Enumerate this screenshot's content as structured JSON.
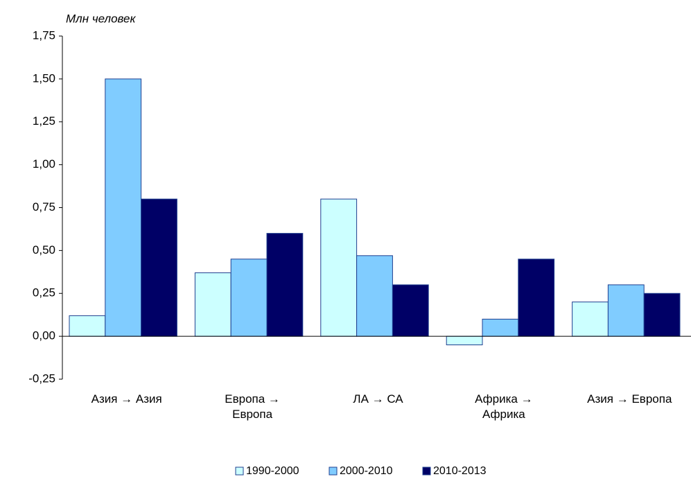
{
  "chart_data": {
    "type": "bar",
    "ylabel": "Млн человек",
    "categories": [
      "Азия → Азия",
      "Европа →\nЕвропа",
      "ЛА → СА",
      "Африка →\nАфрика",
      "Азия → Европа"
    ],
    "series": [
      {
        "name": "1990-2000",
        "color": "#ccffff",
        "values": [
          0.12,
          0.37,
          0.8,
          -0.05,
          0.2
        ]
      },
      {
        "name": "2000-2010",
        "color": "#80ccff",
        "values": [
          1.5,
          0.45,
          0.47,
          0.1,
          0.3
        ]
      },
      {
        "name": "2010-2013",
        "color": "#000066",
        "values": [
          0.8,
          0.6,
          0.3,
          0.45,
          0.25
        ]
      }
    ],
    "ylim": [
      -0.25,
      1.75
    ],
    "yticks": [
      {
        "value": -0.25,
        "label": "-0,25"
      },
      {
        "value": 0,
        "label": "0,00"
      },
      {
        "value": 0.25,
        "label": "0,25"
      },
      {
        "value": 0.5,
        "label": "0,50"
      },
      {
        "value": 0.75,
        "label": "0,75"
      },
      {
        "value": 1,
        "label": "1,00"
      },
      {
        "value": 1.25,
        "label": "1,25"
      },
      {
        "value": 1.5,
        "label": "1,50"
      },
      {
        "value": 1.75,
        "label": "1,75"
      }
    ],
    "grid": false,
    "legend": "bottom"
  }
}
